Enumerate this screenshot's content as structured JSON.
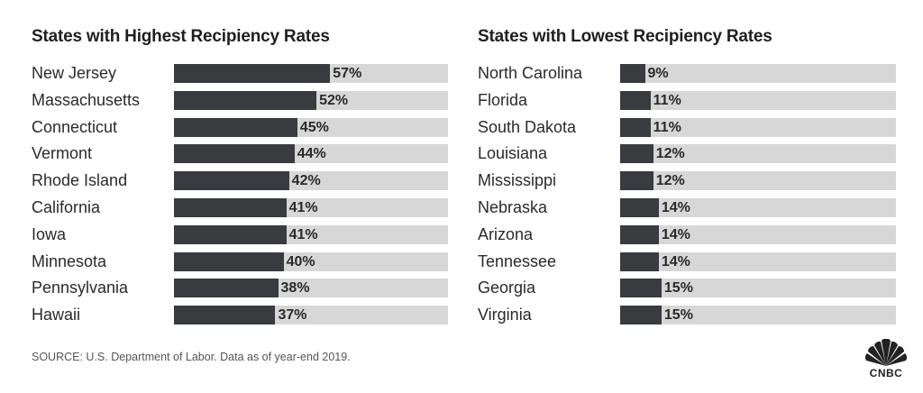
{
  "chart_data": [
    {
      "type": "bar",
      "title": "States with Highest Recipiency Rates",
      "categories": [
        "New Jersey",
        "Massachusetts",
        "Connecticut",
        "Vermont",
        "Rhode Island",
        "California",
        "Iowa",
        "Minnesota",
        "Pennsylvania",
        "Hawaii"
      ],
      "values": [
        57,
        52,
        45,
        44,
        42,
        41,
        41,
        40,
        38,
        37
      ],
      "value_labels": [
        "57%",
        "52%",
        "45%",
        "44%",
        "42%",
        "41%",
        "41%",
        "40%",
        "38%",
        "37%"
      ],
      "xlim": [
        0,
        100
      ],
      "colors": {
        "bar": "#3a3b3f",
        "track": "#d7d7d7"
      }
    },
    {
      "type": "bar",
      "title": "States with Lowest Recipiency Rates",
      "categories": [
        "North Carolina",
        "Florida",
        "South Dakota",
        "Louisiana",
        "Mississippi",
        "Nebraska",
        "Arizona",
        "Tennessee",
        "Georgia",
        "Virginia"
      ],
      "values": [
        9,
        11,
        11,
        12,
        12,
        14,
        14,
        14,
        15,
        15
      ],
      "value_labels": [
        "9%",
        "11%",
        "11%",
        "12%",
        "12%",
        "14%",
        "14%",
        "14%",
        "15%",
        "15%"
      ],
      "xlim": [
        0,
        100
      ],
      "colors": {
        "bar": "#3a3b3f",
        "track": "#d7d7d7"
      }
    }
  ],
  "footer": {
    "source": "SOURCE: U.S. Department of Labor. Data as of year-end 2019.",
    "logo_text": "CNBC",
    "logo_icon": "cnbc-peacock-icon"
  }
}
